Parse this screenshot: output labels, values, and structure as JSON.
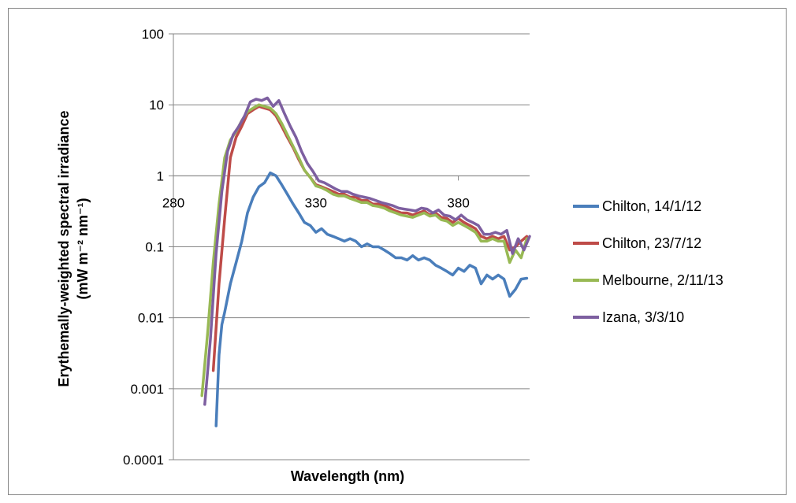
{
  "chart_data": {
    "type": "line",
    "title": "",
    "xlabel": "Wavelength (nm)",
    "ylabel_line1": "Erythemally-weighted spectral irradiance",
    "ylabel_line2": "(mW m⁻² nm⁻¹)",
    "yscale": "log",
    "xlim": [
      280,
      405
    ],
    "ylim": [
      0.0001,
      100
    ],
    "x_ticks": [
      "280",
      "330",
      "380"
    ],
    "y_ticks": [
      "100",
      "10",
      "1",
      "0.1",
      "0.01",
      "0.001",
      "0.0001"
    ],
    "x_axis_crosses_y_at": 1,
    "grid": "horizontal major",
    "legend_position": "right",
    "series": [
      {
        "name": "Chilton, 14/1/12",
        "color": "#4A7EBB",
        "x": [
          295,
          296,
          297,
          298,
          300,
          302,
          304,
          306,
          308,
          310,
          312,
          314,
          316,
          318,
          320,
          322,
          324,
          326,
          328,
          330,
          332,
          334,
          336,
          338,
          340,
          342,
          344,
          346,
          348,
          350,
          352,
          354,
          356,
          358,
          360,
          362,
          364,
          366,
          368,
          370,
          372,
          374,
          376,
          378,
          380,
          382,
          384,
          386,
          388,
          390,
          392,
          394,
          396,
          398,
          400,
          402,
          404
        ],
        "y": [
          0.0003,
          0.003,
          0.008,
          0.012,
          0.03,
          0.06,
          0.12,
          0.3,
          0.5,
          0.7,
          0.8,
          1.1,
          1.0,
          0.75,
          0.55,
          0.4,
          0.3,
          0.22,
          0.2,
          0.16,
          0.18,
          0.15,
          0.14,
          0.13,
          0.12,
          0.13,
          0.12,
          0.1,
          0.11,
          0.1,
          0.1,
          0.09,
          0.08,
          0.07,
          0.07,
          0.065,
          0.075,
          0.065,
          0.07,
          0.065,
          0.055,
          0.05,
          0.045,
          0.04,
          0.05,
          0.045,
          0.055,
          0.05,
          0.03,
          0.04,
          0.035,
          0.04,
          0.035,
          0.02,
          0.025,
          0.035,
          0.036
        ]
      },
      {
        "name": "Chilton, 23/7/12",
        "color": "#BE4B48",
        "x": [
          294,
          296,
          298,
          300,
          302,
          304,
          306,
          308,
          310,
          312,
          314,
          316,
          318,
          320,
          322,
          324,
          326,
          328,
          330,
          332,
          334,
          336,
          338,
          340,
          342,
          344,
          346,
          348,
          350,
          352,
          354,
          356,
          358,
          360,
          362,
          364,
          366,
          368,
          370,
          372,
          374,
          376,
          378,
          380,
          382,
          384,
          386,
          388,
          390,
          392,
          394,
          396,
          398,
          400,
          402,
          404
        ],
        "y": [
          0.0018,
          0.03,
          0.25,
          1.8,
          3.5,
          5.0,
          7.5,
          8.5,
          9.5,
          9.0,
          8.5,
          7.0,
          5.0,
          3.5,
          2.5,
          1.7,
          1.2,
          0.95,
          0.75,
          0.7,
          0.65,
          0.6,
          0.55,
          0.55,
          0.5,
          0.5,
          0.45,
          0.45,
          0.4,
          0.4,
          0.38,
          0.35,
          0.32,
          0.3,
          0.3,
          0.28,
          0.3,
          0.32,
          0.28,
          0.3,
          0.26,
          0.25,
          0.22,
          0.25,
          0.22,
          0.2,
          0.18,
          0.14,
          0.13,
          0.14,
          0.13,
          0.14,
          0.09,
          0.1,
          0.12,
          0.14
        ]
      },
      {
        "name": "Melbourne, 2/11/13",
        "color": "#98B954",
        "x": [
          290,
          292,
          294,
          296,
          298,
          300,
          302,
          304,
          306,
          308,
          310,
          312,
          314,
          316,
          318,
          320,
          322,
          324,
          326,
          328,
          330,
          332,
          334,
          336,
          338,
          340,
          342,
          344,
          346,
          348,
          350,
          352,
          354,
          356,
          358,
          360,
          362,
          364,
          366,
          368,
          370,
          372,
          374,
          376,
          378,
          380,
          382,
          384,
          386,
          388,
          390,
          392,
          394,
          396,
          398,
          400,
          402,
          404
        ],
        "y": [
          0.0008,
          0.006,
          0.06,
          0.4,
          1.8,
          3.2,
          4.2,
          6.0,
          8.0,
          9.0,
          10.0,
          9.5,
          9.0,
          7.5,
          5.5,
          3.8,
          2.6,
          1.8,
          1.2,
          0.95,
          0.72,
          0.68,
          0.62,
          0.55,
          0.52,
          0.52,
          0.48,
          0.45,
          0.42,
          0.42,
          0.38,
          0.37,
          0.35,
          0.32,
          0.3,
          0.28,
          0.27,
          0.26,
          0.28,
          0.3,
          0.27,
          0.28,
          0.24,
          0.23,
          0.2,
          0.22,
          0.2,
          0.18,
          0.16,
          0.12,
          0.12,
          0.13,
          0.12,
          0.12,
          0.06,
          0.09,
          0.07,
          0.13
        ]
      },
      {
        "name": "Izana, 3/3/10",
        "color": "#7D5FA0",
        "x": [
          291,
          293,
          295,
          297,
          299,
          301,
          303,
          305,
          307,
          309,
          311,
          313,
          315,
          317,
          319,
          321,
          323,
          325,
          327,
          329,
          331,
          333,
          335,
          337,
          339,
          341,
          343,
          345,
          347,
          349,
          351,
          353,
          355,
          357,
          359,
          361,
          363,
          365,
          367,
          369,
          371,
          373,
          375,
          377,
          379,
          381,
          383,
          385,
          387,
          389,
          391,
          393,
          395,
          397,
          399,
          401,
          403,
          405
        ],
        "y": [
          0.0006,
          0.005,
          0.08,
          0.6,
          2.2,
          3.8,
          5.0,
          7.0,
          11.0,
          12.0,
          11.5,
          12.5,
          9.5,
          11.5,
          7.5,
          5.0,
          3.5,
          2.2,
          1.5,
          1.15,
          0.85,
          0.8,
          0.72,
          0.65,
          0.6,
          0.6,
          0.55,
          0.52,
          0.5,
          0.48,
          0.45,
          0.42,
          0.4,
          0.38,
          0.35,
          0.34,
          0.33,
          0.32,
          0.35,
          0.34,
          0.3,
          0.33,
          0.28,
          0.27,
          0.24,
          0.28,
          0.24,
          0.22,
          0.2,
          0.15,
          0.15,
          0.16,
          0.15,
          0.17,
          0.08,
          0.13,
          0.09,
          0.14
        ]
      }
    ]
  }
}
